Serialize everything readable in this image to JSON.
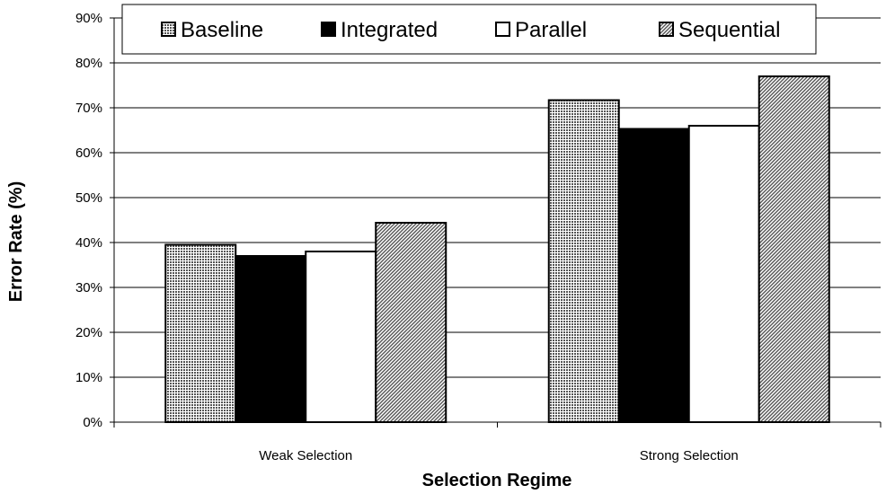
{
  "chart_data": {
    "type": "bar",
    "categories": [
      "Weak Selection",
      "Strong Selection"
    ],
    "series": [
      {
        "name": "Baseline",
        "values": [
          39.5,
          71.7
        ],
        "pattern": "grid",
        "color": "#d0d0d0"
      },
      {
        "name": "Integrated",
        "values": [
          37.0,
          65.3
        ],
        "pattern": "solid",
        "color": "#000000"
      },
      {
        "name": "Parallel",
        "values": [
          38.0,
          66.0
        ],
        "pattern": "none",
        "color": "#ffffff"
      },
      {
        "name": "Sequential",
        "values": [
          44.4,
          77.0
        ],
        "pattern": "diagonal",
        "color": "#c8c8c8"
      }
    ],
    "xlabel": "Selection Regime",
    "ylabel": "Error Rate (%)",
    "ylim": [
      0,
      90
    ],
    "yticks": [
      "0%",
      "10%",
      "20%",
      "30%",
      "40%",
      "50%",
      "60%",
      "70%",
      "80%",
      "90%"
    ],
    "grid": true,
    "legend_position": "top"
  }
}
